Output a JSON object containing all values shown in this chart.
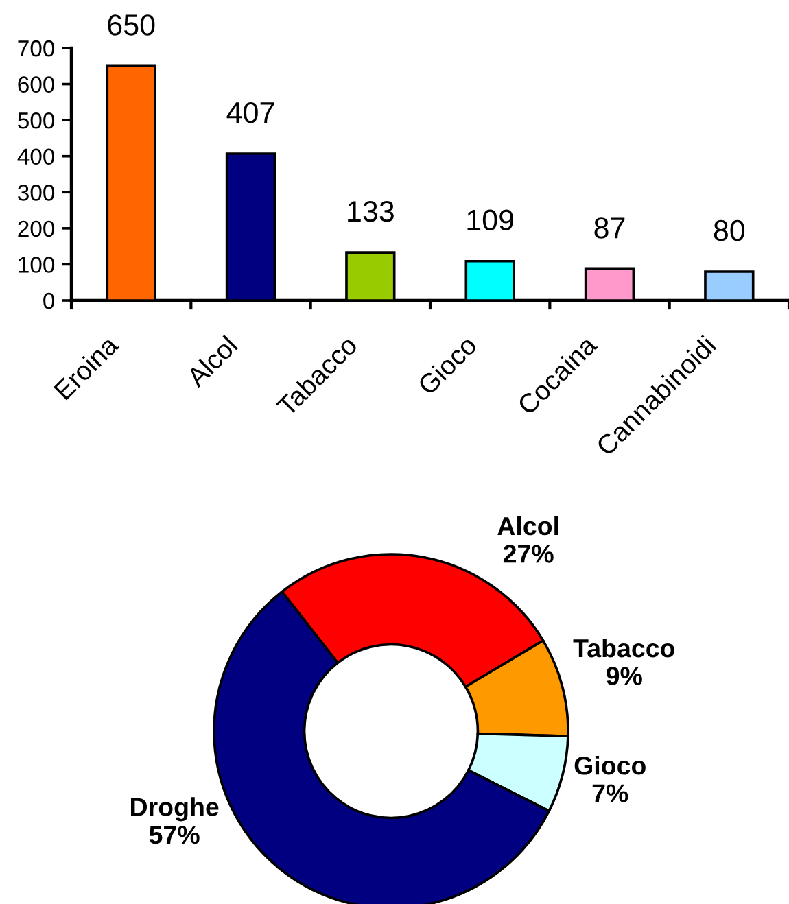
{
  "chart_data": [
    {
      "type": "bar",
      "categories": [
        "Eroina",
        "Alcol",
        "Tabacco",
        "Gioco",
        "Cocaina",
        "Cannabinoidi"
      ],
      "values": [
        650,
        407,
        133,
        109,
        87,
        80
      ],
      "colors": [
        "#ff6600",
        "#000080",
        "#99cc00",
        "#00ffff",
        "#ff99cc",
        "#99ccff"
      ],
      "ylim": [
        0,
        700
      ],
      "yticks": [
        0,
        100,
        200,
        300,
        400,
        500,
        600,
        700
      ],
      "data_labels": true
    },
    {
      "type": "donut",
      "categories": [
        "Alcol",
        "Tabacco",
        "Gioco",
        "Droghe"
      ],
      "values": [
        27,
        9,
        7,
        57
      ],
      "colors": [
        "#ff0000",
        "#ff9900",
        "#ccffff",
        "#000080"
      ],
      "value_labels": [
        "27%",
        "9%",
        "7%",
        "57%"
      ]
    }
  ]
}
